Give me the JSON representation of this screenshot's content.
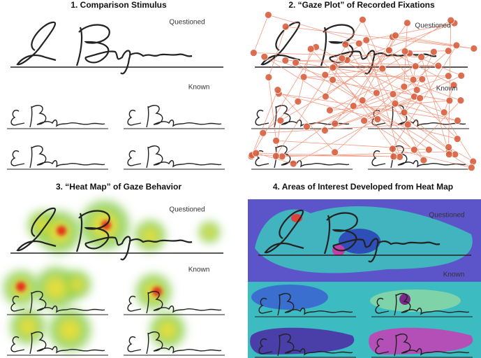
{
  "panels": [
    {
      "title": "1. Comparison Stimulus",
      "questioned": "Questioned",
      "known": "Known"
    },
    {
      "title": "2. “Gaze Plot” of Recorded Fixations",
      "questioned": "Questioned",
      "known": "Known"
    },
    {
      "title": "3.  “Heat Map” of Gaze Behavior",
      "questioned": "Questioned",
      "known": "Known"
    },
    {
      "title": "4. Areas of Interest Developed from Heat Map",
      "questioned": "Questioned",
      "known": "Known"
    }
  ]
}
